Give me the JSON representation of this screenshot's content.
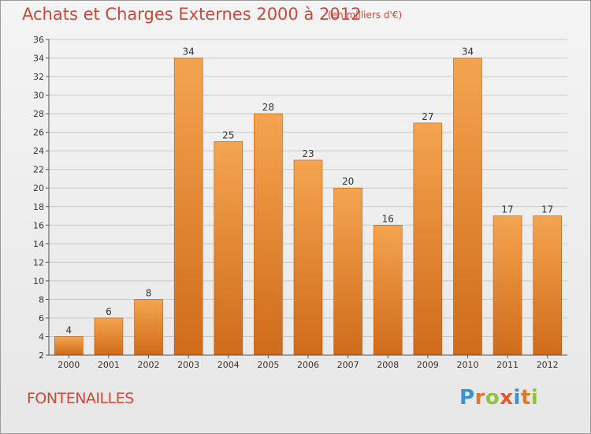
{
  "title": "Achats et Charges Externes 2000 à 2012",
  "subtitle": "(en milliers d'€)",
  "commune": "FONTENAILLES",
  "logo": {
    "letters": [
      "P",
      "r",
      "o",
      "x",
      "i",
      "t",
      "i"
    ]
  },
  "colors": {
    "bar": "#f19a3e",
    "bar_dark": "#d06d1b",
    "text_accent": "#c84a3a"
  },
  "chart_data": {
    "type": "bar",
    "categories": [
      "2000",
      "2001",
      "2002",
      "2003",
      "2004",
      "2005",
      "2006",
      "2007",
      "2008",
      "2009",
      "2010",
      "2011",
      "2012"
    ],
    "values": [
      4,
      6,
      8,
      34,
      25,
      28,
      23,
      20,
      16,
      27,
      34,
      17,
      17
    ],
    "ylim": [
      2,
      36
    ],
    "yticks": [
      2,
      4,
      6,
      8,
      10,
      12,
      14,
      16,
      18,
      20,
      22,
      24,
      26,
      28,
      30,
      32,
      34,
      36
    ],
    "grid": "horizontal",
    "xlabel": "",
    "ylabel": ""
  }
}
